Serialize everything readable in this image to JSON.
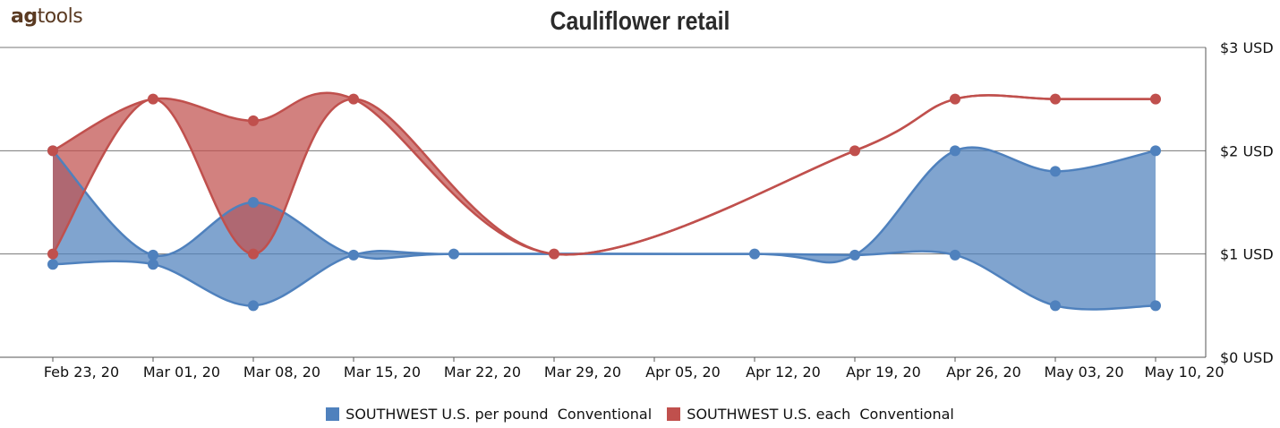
{
  "logo": {
    "text_bold": "ag",
    "text_rest": "tools"
  },
  "chart_data": {
    "type": "area",
    "title": "Cauliflower retail",
    "x": [
      "2020-02-23",
      "2020-03-01",
      "2020-03-08",
      "2020-03-15",
      "2020-03-22",
      "2020-03-29",
      "2020-04-05",
      "2020-04-12",
      "2020-04-19",
      "2020-04-26",
      "2020-05-03",
      "2020-05-10"
    ],
    "x_tick_labels": [
      "Feb 23, 20",
      "Mar 01, 20",
      "Mar 08, 20",
      "Mar 15, 20",
      "Mar 22, 20",
      "Mar 29, 20",
      "Apr 05, 20",
      "Apr 12, 20",
      "Apr 19, 20",
      "Apr 26, 20",
      "May 03, 20",
      "May 10, 20"
    ],
    "y_tick_labels": [
      "$0 USD",
      "$1 USD",
      "$2 USD",
      "$3 USD"
    ],
    "y_ticks": [
      0,
      1,
      2,
      3
    ],
    "ylim": [
      0,
      3
    ],
    "y_axis_position": "right",
    "grid": true,
    "legend_position": "bottom",
    "series": [
      {
        "name": "SOUTHWEST U.S. per pound  Conventional",
        "color": "#4f81bd",
        "points": [
          {
            "x": "2020-02-23",
            "low": 0.9,
            "high": 2.0
          },
          {
            "x": "2020-03-01",
            "low": 0.9,
            "high": 0.99
          },
          {
            "x": "2020-03-08",
            "low": 0.5,
            "high": 1.5
          },
          {
            "x": "2020-03-15",
            "low": 0.99,
            "high": 0.99
          },
          {
            "x": "2020-03-22",
            "low": 1.0,
            "high": 1.0
          },
          {
            "x": "2020-04-12",
            "low": 1.0,
            "high": 1.0
          },
          {
            "x": "2020-04-19",
            "low": 0.99,
            "high": 0.99
          },
          {
            "x": "2020-04-26",
            "low": 0.99,
            "high": 2.0
          },
          {
            "x": "2020-05-03",
            "low": 0.5,
            "high": 1.8
          },
          {
            "x": "2020-05-10",
            "low": 0.5,
            "high": 2.0
          }
        ]
      },
      {
        "name": "SOUTHWEST U.S. each  Conventional",
        "color": "#c0504d",
        "points": [
          {
            "x": "2020-02-23",
            "low": 1.0,
            "high": 2.0
          },
          {
            "x": "2020-03-01",
            "low": 2.5,
            "high": 2.5
          },
          {
            "x": "2020-03-08",
            "low": 1.0,
            "high": 2.29
          },
          {
            "x": "2020-03-15",
            "low": 2.5,
            "high": 2.5
          },
          {
            "x": "2020-03-29",
            "low": 1.0,
            "high": 1.0
          },
          {
            "x": "2020-04-19",
            "low": 2.0,
            "high": 2.0
          },
          {
            "x": "2020-04-26",
            "low": 2.5,
            "high": 2.5
          },
          {
            "x": "2020-05-03",
            "low": 2.5,
            "high": 2.5
          },
          {
            "x": "2020-05-10",
            "low": 2.5,
            "high": 2.5
          }
        ]
      }
    ]
  }
}
